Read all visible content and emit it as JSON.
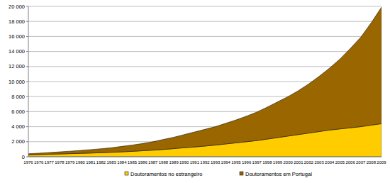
{
  "chart_data": {
    "type": "area",
    "stacked": true,
    "grid": true,
    "legend": "bottom",
    "categories": [
      "1976",
      "1976",
      "1977",
      "1978",
      "1979",
      "1980",
      "1981",
      "1982",
      "1983",
      "1984",
      "1985",
      "1986",
      "1987",
      "1988",
      "1989",
      "1990",
      "1991",
      "1992",
      "1993",
      "1994",
      "1995",
      "1996",
      "1997",
      "1998",
      "1999",
      "2000",
      "2001",
      "2002",
      "2003",
      "2004",
      "2005",
      "2006",
      "2007",
      "2008",
      "2009"
    ],
    "series": [
      {
        "name": "Doutoramentos no estrangeiro",
        "color": "#ffcc00",
        "values": [
          250,
          290,
          330,
          370,
          410,
          450,
          490,
          540,
          590,
          650,
          720,
          800,
          880,
          970,
          1080,
          1200,
          1300,
          1420,
          1550,
          1700,
          1850,
          2000,
          2150,
          2350,
          2550,
          2750,
          2950,
          3150,
          3350,
          3550,
          3700,
          3850,
          4000,
          4200,
          4400
        ]
      },
      {
        "name": "Doutoramentos em Portugal",
        "color": "#996600",
        "values": [
          150,
          190,
          230,
          280,
          330,
          390,
          460,
          530,
          610,
          730,
          840,
          960,
          1120,
          1330,
          1520,
          1750,
          2000,
          2230,
          2450,
          2750,
          3050,
          3400,
          3800,
          4250,
          4750,
          5250,
          5850,
          6550,
          7350,
          8250,
          9300,
          10550,
          11900,
          13600,
          15500
        ]
      }
    ],
    "ylim": [
      0,
      20000
    ],
    "yticks": [
      0,
      {
        "value": 2000,
        "label": "2 000"
      },
      {
        "value": 4000,
        "label": "4 000"
      },
      {
        "value": 6000,
        "label": "6 000"
      },
      {
        "value": 8000,
        "label": "8 000"
      },
      {
        "value": 10000,
        "label": "10 000"
      },
      {
        "value": 12000,
        "label": "12 000"
      },
      {
        "value": 14000,
        "label": "14 000"
      },
      {
        "value": 16000,
        "label": "16 000"
      },
      {
        "value": 18000,
        "label": "18 000"
      },
      {
        "value": 20000,
        "label": "20 000"
      }
    ]
  }
}
